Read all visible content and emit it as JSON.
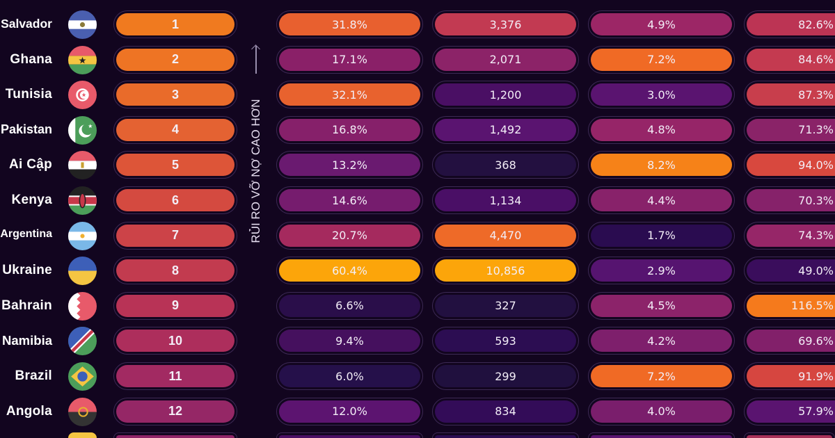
{
  "axis_label": "RỦI RO VỠ NỢ CAO HƠN",
  "chart_data": {
    "type": "table",
    "rows": [
      {
        "country": "Salvador",
        "flag": "el-salvador",
        "rank": "1",
        "rank_color": "#f07a1f",
        "values": [
          "31.8%",
          "3,376",
          "4.9%",
          "82.6%"
        ],
        "colors": [
          "#e8602f",
          "#c23a52",
          "#9c2666",
          "#bc3454"
        ]
      },
      {
        "country": "Ghana",
        "flag": "ghana",
        "rank": "2",
        "rank_color": "#ee7424",
        "values": [
          "17.1%",
          "2,071",
          "7.2%",
          "84.6%"
        ],
        "colors": [
          "#8a2068",
          "#8c2368",
          "#f06a25",
          "#c43a50"
        ]
      },
      {
        "country": "Tunisia",
        "flag": "tunisia",
        "rank": "3",
        "rank_color": "#e96b2a",
        "values": [
          "32.1%",
          "1,200",
          "3.0%",
          "87.3%"
        ],
        "colors": [
          "#e8622e",
          "#4a0f64",
          "#5a1470",
          "#c83e4c"
        ]
      },
      {
        "country": "Pakistan",
        "flag": "pakistan",
        "rank": "4",
        "rank_color": "#e46232",
        "values": [
          "16.8%",
          "1,492",
          "4.8%",
          "71.3%"
        ],
        "colors": [
          "#86206a",
          "#5a1470",
          "#962568",
          "#8a2368"
        ]
      },
      {
        "country": "Ai Cập",
        "flag": "egypt",
        "rank": "5",
        "rank_color": "#dd5538",
        "values": [
          "13.2%",
          "368",
          "8.2%",
          "94.0%"
        ],
        "colors": [
          "#6a1a70",
          "#231040",
          "#f68218",
          "#d8483e"
        ]
      },
      {
        "country": "Kenya",
        "flag": "kenya",
        "rank": "6",
        "rank_color": "#d44a40",
        "values": [
          "14.6%",
          "1,134",
          "4.4%",
          "70.3%"
        ],
        "colors": [
          "#761c6e",
          "#4a0f66",
          "#88226a",
          "#86226a"
        ]
      },
      {
        "country": "Argentina",
        "flag": "argentina",
        "rank": "7",
        "rank_color": "#cc4348",
        "values": [
          "20.7%",
          "4,470",
          "1.7%",
          "74.3%"
        ],
        "colors": [
          "#a52a5e",
          "#ee6a28",
          "#2a0c50",
          "#962668"
        ]
      },
      {
        "country": "Ukraine",
        "flag": "ukraine",
        "rank": "8",
        "rank_color": "#c23b4f",
        "values": [
          "60.4%",
          "10,856",
          "2.9%",
          "49.0%"
        ],
        "colors": [
          "#fca50a",
          "#fca50a",
          "#561470",
          "#3a0d5c"
        ]
      },
      {
        "country": "Bahrain",
        "flag": "bahrain",
        "rank": "9",
        "rank_color": "#b83356",
        "values": [
          "6.6%",
          "327",
          "4.5%",
          "116.5%"
        ],
        "colors": [
          "#2a0e4a",
          "#221040",
          "#8c236a",
          "#f57a1c"
        ]
      },
      {
        "country": "Namibia",
        "flag": "namibia",
        "rank": "10",
        "rank_color": "#ad2e5c",
        "values": [
          "9.4%",
          "593",
          "4.2%",
          "69.6%"
        ],
        "colors": [
          "#45105e",
          "#2c0d52",
          "#7e1f6c",
          "#82206a"
        ]
      },
      {
        "country": "Brazil",
        "flag": "brazil",
        "rank": "11",
        "rank_color": "#a22a62",
        "values": [
          "6.0%",
          "299",
          "7.2%",
          "91.9%"
        ],
        "colors": [
          "#25104a",
          "#20103e",
          "#f06a25",
          "#d64640"
        ]
      },
      {
        "country": "Angola",
        "flag": "angola",
        "rank": "12",
        "rank_color": "#952766",
        "values": [
          "12.0%",
          "834",
          "4.0%",
          "57.9%"
        ],
        "colors": [
          "#5c1470",
          "#330c58",
          "#7a1e6c",
          "#5a1470"
        ]
      }
    ]
  }
}
